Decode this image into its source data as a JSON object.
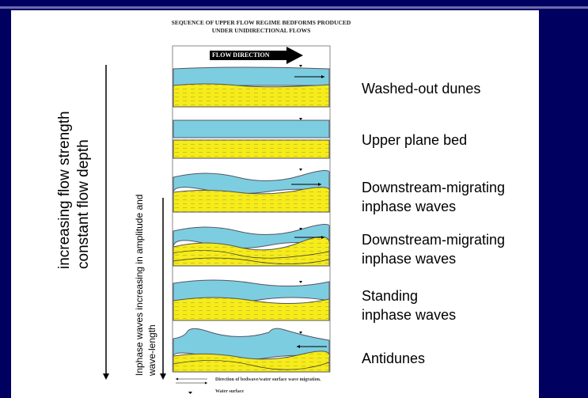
{
  "title_line1": "SEQUENCE OF UPPER FLOW REGIME BEDFORMS PRODUCED",
  "title_line2": "UNDER UNIDIRECTIONAL FLOWS",
  "flow_direction": "FLOW DIRECTION",
  "left_axis": {
    "line1": "increasing flow strength",
    "line2": "constant flow depth"
  },
  "inner_axis": {
    "line1": "Inphase waves increasing in amplitude and",
    "line2": "wave-length"
  },
  "labels": [
    {
      "line1": "Washed-out dunes",
      "line2": ""
    },
    {
      "line1": "Upper plane bed",
      "line2": ""
    },
    {
      "line1": "Downstream-migrating",
      "line2": "inphase waves"
    },
    {
      "line1": "Downstream-migrating",
      "line2": "inphase waves"
    },
    {
      "line1": "Standing",
      "line2": "inphase waves"
    },
    {
      "line1": "Antidunes",
      "line2": ""
    }
  ],
  "legend": {
    "arrows": "Direction of bedwave/water surface wave migration.",
    "triangle": "Water surface"
  },
  "colors": {
    "background": "#000060",
    "water": "#7dcde0",
    "sand": "#f5ec1a"
  }
}
